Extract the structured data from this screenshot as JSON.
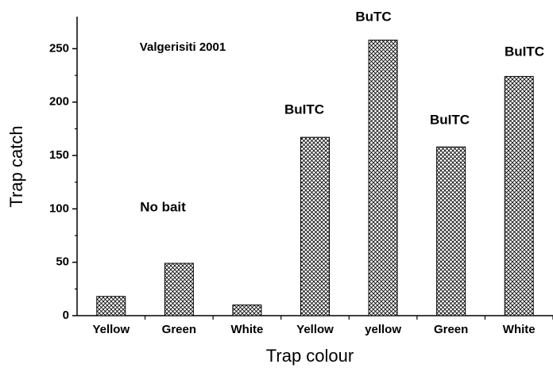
{
  "chart_data": {
    "type": "bar",
    "categories": [
      "Yellow",
      "Green",
      "White",
      "Yellow",
      "yellow",
      "Green",
      "White"
    ],
    "values": [
      18,
      49,
      10,
      167,
      258,
      158,
      224
    ],
    "color": "#000000",
    "xlabel": "Trap colour",
    "ylabel": "Trap catch",
    "ylim": [
      0,
      280
    ],
    "yticks": [
      0,
      50,
      100,
      150,
      200,
      250
    ],
    "annotations": [
      "Valgerisiti 2001",
      "No bait",
      "BuITC",
      "BuTC",
      "BuITC",
      "BuITC"
    ],
    "grid": false
  }
}
